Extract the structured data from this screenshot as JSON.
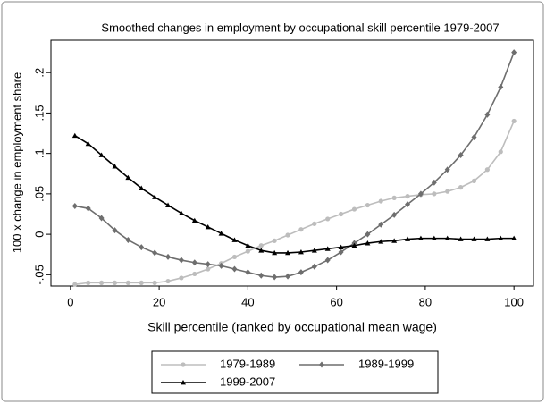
{
  "chart_data": {
    "type": "line",
    "title": "Smoothed changes in employment by occupational skill percentile 1979-2007",
    "x_label": "Skill percentile (ranked by occupational mean wage)",
    "y_label": "100 x change in employment share",
    "x": [
      1,
      4,
      7,
      10,
      13,
      16,
      19,
      22,
      25,
      28,
      31,
      34,
      37,
      40,
      43,
      46,
      49,
      52,
      55,
      58,
      61,
      64,
      67,
      70,
      73,
      76,
      79,
      82,
      85,
      88,
      91,
      94,
      97,
      100
    ],
    "series": [
      {
        "name": "1979-1989",
        "color": "#bdbdbd",
        "marker": "circle",
        "values": [
          -0.062,
          -0.06,
          -0.06,
          -0.06,
          -0.06,
          -0.06,
          -0.06,
          -0.058,
          -0.054,
          -0.049,
          -0.043,
          -0.036,
          -0.028,
          -0.021,
          -0.014,
          -0.008,
          -0.001,
          0.006,
          0.013,
          0.019,
          0.025,
          0.031,
          0.036,
          0.041,
          0.045,
          0.047,
          0.049,
          0.05,
          0.053,
          0.058,
          0.066,
          0.08,
          0.102,
          0.14
        ]
      },
      {
        "name": "1989-1999",
        "color": "#6e6e6e",
        "marker": "diamond",
        "values": [
          0.035,
          0.032,
          0.02,
          0.005,
          -0.007,
          -0.016,
          -0.023,
          -0.028,
          -0.032,
          -0.035,
          -0.037,
          -0.039,
          -0.043,
          -0.047,
          -0.051,
          -0.053,
          -0.052,
          -0.047,
          -0.04,
          -0.032,
          -0.022,
          -0.011,
          0.0,
          0.012,
          0.024,
          0.037,
          0.05,
          0.064,
          0.08,
          0.098,
          0.12,
          0.148,
          0.182,
          0.225
        ]
      },
      {
        "name": "1999-2007",
        "color": "#000000",
        "marker": "triangle",
        "values": [
          0.122,
          0.112,
          0.098,
          0.084,
          0.07,
          0.057,
          0.046,
          0.036,
          0.026,
          0.017,
          0.009,
          0.001,
          -0.007,
          -0.014,
          -0.02,
          -0.023,
          -0.023,
          -0.022,
          -0.02,
          -0.018,
          -0.016,
          -0.014,
          -0.011,
          -0.009,
          -0.008,
          -0.006,
          -0.005,
          -0.005,
          -0.005,
          -0.006,
          -0.006,
          -0.006,
          -0.005,
          -0.005
        ]
      }
    ],
    "xlim": [
      -4.4,
      104.4
    ],
    "ylim": [
      -0.064,
      0.24
    ],
    "xticks": [
      0,
      20,
      40,
      60,
      80,
      100
    ],
    "yticks": [
      {
        "value": -0.05,
        "label": "-.05"
      },
      0,
      {
        "value": 0.05,
        "label": ".05"
      },
      {
        "value": 0.1,
        "label": ".1"
      },
      {
        "value": 0.15,
        "label": ".15"
      },
      {
        "value": 0.2,
        "label": ".2"
      }
    ],
    "legend": "bottom"
  }
}
